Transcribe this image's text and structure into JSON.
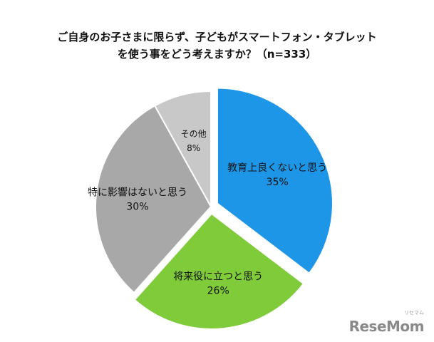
{
  "chart_data": {
    "type": "pie",
    "title_lines": [
      "ご自身のお子さまに限らず、子どもがスマートフォン・タブレット",
      "を使う事をどう考えますか？（n=333）"
    ],
    "slices": [
      {
        "label": "教育上良くないと思う",
        "value": 35,
        "value_label": "35%",
        "color": "#1e96e8"
      },
      {
        "label": "将来役に立つと思う",
        "value": 26,
        "value_label": "26%",
        "color": "#7fcb3a"
      },
      {
        "label": "特に影響はないと思う",
        "value": 30,
        "value_label": "30%",
        "color": "#a8a8a8"
      },
      {
        "label": "その他",
        "value": 8,
        "value_label": "8%",
        "color": "#c8c8c8"
      }
    ]
  },
  "branding": {
    "logo": "ReseMom",
    "logo_small": "リセマム"
  }
}
